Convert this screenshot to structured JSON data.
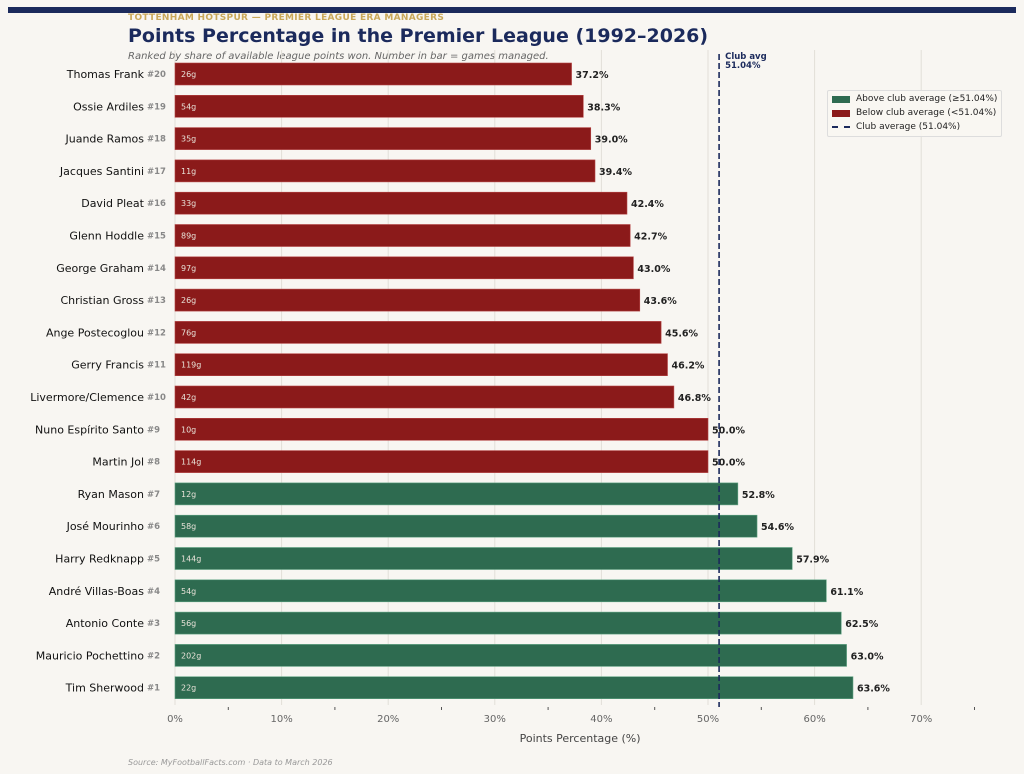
{
  "header": {
    "kicker": "TOTTENHAM HOTSPUR — PREMIER LEAGUE ERA MANAGERS",
    "title": "Points Percentage in the Premier League (1992–2026)",
    "subtitle": "Ranked by share of available league points won. Number in bar = games managed.",
    "source": "Source: MyFootballFacts.com  ·  Data to March 2026"
  },
  "colors": {
    "above": "#2e6b50",
    "below": "#8b1a1a",
    "avg": "#1b2a5c"
  },
  "chart_data": {
    "type": "bar",
    "orientation": "horizontal",
    "xlabel": "Points Percentage (%)",
    "xlim": [
      0,
      78
    ],
    "xticks": [
      0,
      10,
      20,
      30,
      40,
      50,
      60,
      70
    ],
    "xtick_labels": [
      "0%",
      "10%",
      "20%",
      "30%",
      "40%",
      "50%",
      "60%",
      "70%"
    ],
    "club_avg": 51.04,
    "club_avg_label": "Club avg",
    "club_avg_value_label": "51.04%",
    "grid": true,
    "managers": [
      {
        "name": "Thomas Frank",
        "rank": "#20",
        "games": "26g",
        "value": 37.2,
        "label": "37.2%"
      },
      {
        "name": "Ossie Ardiles",
        "rank": "#19",
        "games": "54g",
        "value": 38.3,
        "label": "38.3%"
      },
      {
        "name": "Juande Ramos",
        "rank": "#18",
        "games": "35g",
        "value": 39.0,
        "label": "39.0%"
      },
      {
        "name": "Jacques Santini",
        "rank": "#17",
        "games": "11g",
        "value": 39.4,
        "label": "39.4%"
      },
      {
        "name": "David Pleat",
        "rank": "#16",
        "games": "33g",
        "value": 42.4,
        "label": "42.4%"
      },
      {
        "name": "Glenn Hoddle",
        "rank": "#15",
        "games": "89g",
        "value": 42.7,
        "label": "42.7%"
      },
      {
        "name": "George Graham",
        "rank": "#14",
        "games": "97g",
        "value": 43.0,
        "label": "43.0%"
      },
      {
        "name": "Christian Gross",
        "rank": "#13",
        "games": "26g",
        "value": 43.6,
        "label": "43.6%"
      },
      {
        "name": "Ange Postecoglou",
        "rank": "#12",
        "games": "76g",
        "value": 45.6,
        "label": "45.6%"
      },
      {
        "name": "Gerry Francis",
        "rank": "#11",
        "games": "119g",
        "value": 46.2,
        "label": "46.2%"
      },
      {
        "name": "Livermore/Clemence",
        "rank": "#10",
        "games": "42g",
        "value": 46.8,
        "label": "46.8%"
      },
      {
        "name": "Nuno Espírito Santo",
        "rank": "#9",
        "games": "10g",
        "value": 50.0,
        "label": "50.0%"
      },
      {
        "name": "Martin Jol",
        "rank": "#8",
        "games": "114g",
        "value": 50.0,
        "label": "50.0%"
      },
      {
        "name": "Ryan Mason",
        "rank": "#7",
        "games": "12g",
        "value": 52.8,
        "label": "52.8%"
      },
      {
        "name": "José Mourinho",
        "rank": "#6",
        "games": "58g",
        "value": 54.6,
        "label": "54.6%"
      },
      {
        "name": "Harry Redknapp",
        "rank": "#5",
        "games": "144g",
        "value": 57.9,
        "label": "57.9%"
      },
      {
        "name": "André Villas-Boas",
        "rank": "#4",
        "games": "54g",
        "value": 61.1,
        "label": "61.1%"
      },
      {
        "name": "Antonio Conte",
        "rank": "#3",
        "games": "56g",
        "value": 62.5,
        "label": "62.5%"
      },
      {
        "name": "Mauricio Pochettino",
        "rank": "#2",
        "games": "202g",
        "value": 63.0,
        "label": "63.0%"
      },
      {
        "name": "Tim Sherwood",
        "rank": "#1",
        "games": "22g",
        "value": 63.6,
        "label": "63.6%"
      }
    ],
    "legend": {
      "placement": "bottom-right",
      "above": "Above club average (≥51.04%)",
      "below": "Below club average (<51.04%)",
      "avg": "Club average (51.04%)"
    }
  }
}
